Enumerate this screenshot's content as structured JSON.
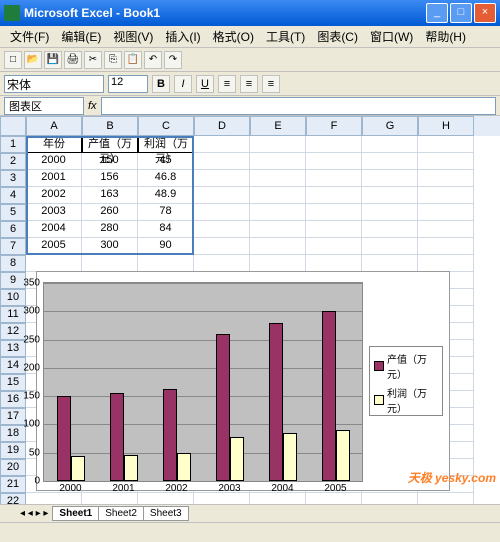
{
  "window": {
    "app": "Microsoft Excel",
    "doc": "Book1"
  },
  "menu": {
    "file": "文件(F)",
    "edit": "编辑(E)",
    "view": "视图(V)",
    "insert": "插入(I)",
    "format": "格式(O)",
    "tools": "工具(T)",
    "chart": "图表(C)",
    "window": "窗口(W)",
    "help": "帮助(H)"
  },
  "format": {
    "font": "宋体",
    "size": "12",
    "bold": "B",
    "italic": "I",
    "underline": "U"
  },
  "namebox": "图表区",
  "fx": "fx",
  "columns": [
    "A",
    "B",
    "C",
    "D",
    "E",
    "F",
    "G",
    "H"
  ],
  "table": {
    "headers": {
      "year": "年份",
      "output": "产值（万元）",
      "profit": "利润（万元）"
    },
    "rows": [
      {
        "y": "2000",
        "o": "150",
        "p": "45"
      },
      {
        "y": "2001",
        "o": "156",
        "p": "46.8"
      },
      {
        "y": "2002",
        "o": "163",
        "p": "48.9"
      },
      {
        "y": "2003",
        "o": "260",
        "p": "78"
      },
      {
        "y": "2004",
        "o": "280",
        "p": "84"
      },
      {
        "y": "2005",
        "o": "300",
        "p": "90"
      }
    ]
  },
  "chart": {
    "type": "bar",
    "categories": [
      "2000",
      "2001",
      "2002",
      "2003",
      "2004",
      "2005"
    ],
    "series": [
      {
        "name": "产值（万元）",
        "color": "#993366",
        "values": [
          150,
          156,
          163,
          260,
          280,
          300
        ]
      },
      {
        "name": "利润（万元）",
        "color": "#ffffcc",
        "values": [
          45,
          46.8,
          48.9,
          78,
          84,
          90
        ]
      }
    ],
    "ylim": [
      0,
      350
    ],
    "ytick_step": 50,
    "plot_bg": "#c0c0c0",
    "grid_color": "#888888"
  },
  "sheets": {
    "s1": "Sheet1",
    "s2": "Sheet2",
    "s3": "Sheet3"
  },
  "watermark": "天极 yesky.com"
}
